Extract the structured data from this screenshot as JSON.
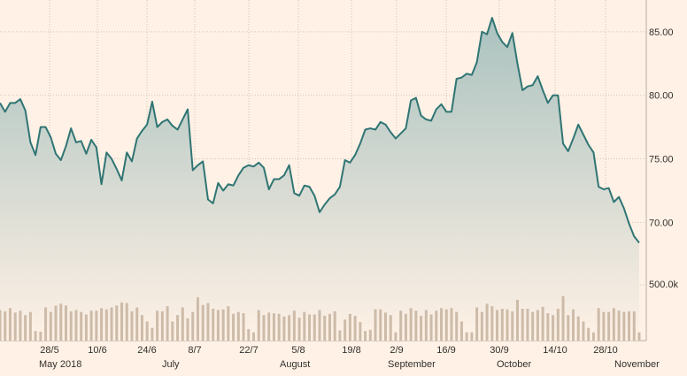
{
  "chart_data": {
    "type": "line",
    "title": "",
    "ylabel": "",
    "xlabel": "",
    "ylim": [
      65.5,
      87.5
    ],
    "y_ticks": [
      "70.00",
      "75.00",
      "80.00",
      "85.00"
    ],
    "volume_label": "500.0k",
    "x_tick_labels": [
      "28/5",
      "10/6",
      "24/6",
      "8/7",
      "22/7",
      "5/8",
      "19/8",
      "2/9",
      "16/9",
      "30/9",
      "14/10",
      "28/10"
    ],
    "month_labels": [
      "May 2018",
      "July",
      "August",
      "September",
      "October",
      "November"
    ],
    "grid": true,
    "series": [
      {
        "values": [
          79.4,
          78.7,
          79.4,
          79.4,
          79.7,
          78.8,
          76.3,
          75.3,
          77.5,
          77.5,
          76.7,
          75.4,
          74.9,
          76.0,
          77.4,
          76.3,
          76.4,
          75.4,
          76.5,
          75.9,
          73.0,
          75.5,
          75.0,
          74.2,
          73.3,
          75.5,
          74.8,
          76.6,
          77.2,
          77.7,
          79.5,
          77.5,
          77.9,
          78.1,
          77.6,
          77.3,
          78.1,
          78.9,
          74.1,
          74.5,
          74.8,
          71.8,
          71.5,
          73.1,
          72.5,
          73.0,
          72.9,
          73.7,
          74.3,
          74.5,
          74.4,
          74.7,
          74.3,
          72.6,
          73.4,
          73.4,
          73.7,
          74.5,
          72.3,
          72.1,
          72.9,
          72.8,
          72.1,
          70.8,
          71.4,
          71.9,
          72.2,
          72.8,
          74.9,
          74.7,
          75.3,
          76.2,
          77.3,
          77.4,
          77.3,
          77.9,
          77.7,
          77.1,
          76.6,
          77.0,
          77.4,
          79.6,
          79.8,
          78.4,
          78.1,
          78.0,
          78.9,
          79.3,
          78.7,
          78.7,
          81.3,
          81.4,
          81.7,
          81.6,
          82.6,
          85.0,
          84.8,
          86.1,
          84.9,
          84.2,
          83.8,
          84.9,
          82.5,
          80.4,
          80.7,
          80.8,
          81.5,
          80.4,
          79.4,
          80.0,
          80.0,
          76.2,
          75.6,
          76.6,
          77.7,
          76.9,
          76.1,
          75.5,
          72.8,
          72.6,
          72.7,
          71.6,
          72.0,
          71.1,
          69.9,
          68.9,
          68.4
        ]
      }
    ],
    "volume": [
      0.48,
      0.46,
      0.51,
      0.44,
      0.47,
      0.4,
      0.45,
      0.15,
      0.14,
      0.52,
      0.45,
      0.55,
      0.58,
      0.55,
      0.46,
      0.48,
      0.45,
      0.41,
      0.47,
      0.47,
      0.51,
      0.49,
      0.52,
      0.55,
      0.6,
      0.59,
      0.46,
      0.52,
      0.4,
      0.3,
      0.2,
      0.47,
      0.46,
      0.54,
      0.3,
      0.4,
      0.52,
      0.35,
      0.45,
      0.68,
      0.56,
      0.59,
      0.5,
      0.48,
      0.49,
      0.54,
      0.42,
      0.45,
      0.43,
      0.18,
      0.13,
      0.48,
      0.4,
      0.44,
      0.43,
      0.42,
      0.38,
      0.4,
      0.47,
      0.36,
      0.45,
      0.41,
      0.41,
      0.48,
      0.39,
      0.42,
      0.46,
      0.16,
      0.33,
      0.42,
      0.39,
      0.29,
      0.15,
      0.17,
      0.49,
      0.49,
      0.44,
      0.4,
      0.13,
      0.47,
      0.42,
      0.51,
      0.47,
      0.39,
      0.48,
      0.41,
      0.47,
      0.51,
      0.49,
      0.51,
      0.45,
      0.3,
      0.13,
      0.13,
      0.52,
      0.45,
      0.58,
      0.54,
      0.48,
      0.5,
      0.49,
      0.46,
      0.64,
      0.5,
      0.5,
      0.45,
      0.48,
      0.53,
      0.43,
      0.4,
      0.5,
      0.7,
      0.4,
      0.49,
      0.38,
      0.3,
      0.2,
      0.13,
      0.51,
      0.45,
      0.45,
      0.51,
      0.47,
      0.45,
      0.46,
      0.46,
      0.13
    ]
  },
  "style": {
    "background": "#fff1e5",
    "line_color": "#2f7574",
    "fill_top": "#aac2bf",
    "fill_bottom": "#fff1e5",
    "volume_color": "#cdbba9",
    "grid_color": "#cfc5ba",
    "text_color": "#33302e"
  }
}
